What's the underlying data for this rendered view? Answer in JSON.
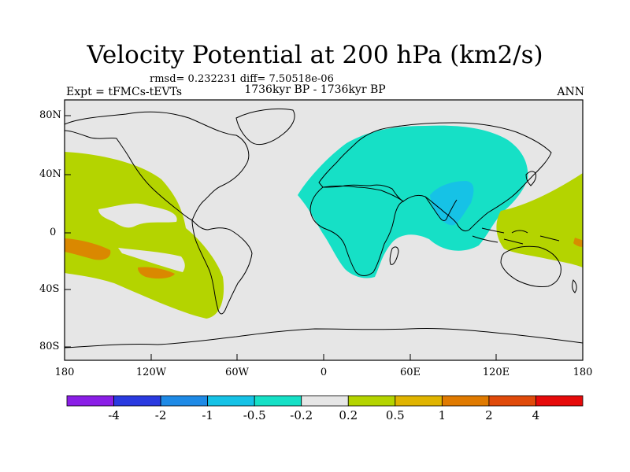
{
  "title": "Velocity Potential at 200 hPa (km2/s)",
  "subtitle_stats": "rmsd= 0.232231 diff= 7.50518e-06",
  "left_label": "Expt = tFMCs-tEVTs",
  "center_label": "1736kyr BP - 1736kyr BP",
  "right_label": "ANN",
  "axes": {
    "lon_ticks": [
      "180",
      "120W",
      "60W",
      "0",
      "60E",
      "120E",
      "180"
    ],
    "lat_ticks": [
      "80N",
      "40N",
      "0",
      "40S",
      "80S"
    ]
  },
  "colorbar": {
    "labels": [
      "-4",
      "-2",
      "-1",
      "-0.5",
      "-0.2",
      "0.2",
      "0.5",
      "1",
      "2",
      "4"
    ],
    "colors": [
      "#8a1ee6",
      "#2a3ae0",
      "#1e8ae6",
      "#16c2e6",
      "#16e0c6",
      "#e6e6e6",
      "#b4d400",
      "#e0b400",
      "#e07a00",
      "#e04a0a",
      "#e60a0a"
    ]
  },
  "colors": {
    "background": "#e6e6e6",
    "neg_02_05": "#16e0c6",
    "neg_05_1": "#16c2e6",
    "pos_02_05": "#b4d400",
    "pos_1_2": "#e07a00",
    "coast": "#000000"
  }
}
